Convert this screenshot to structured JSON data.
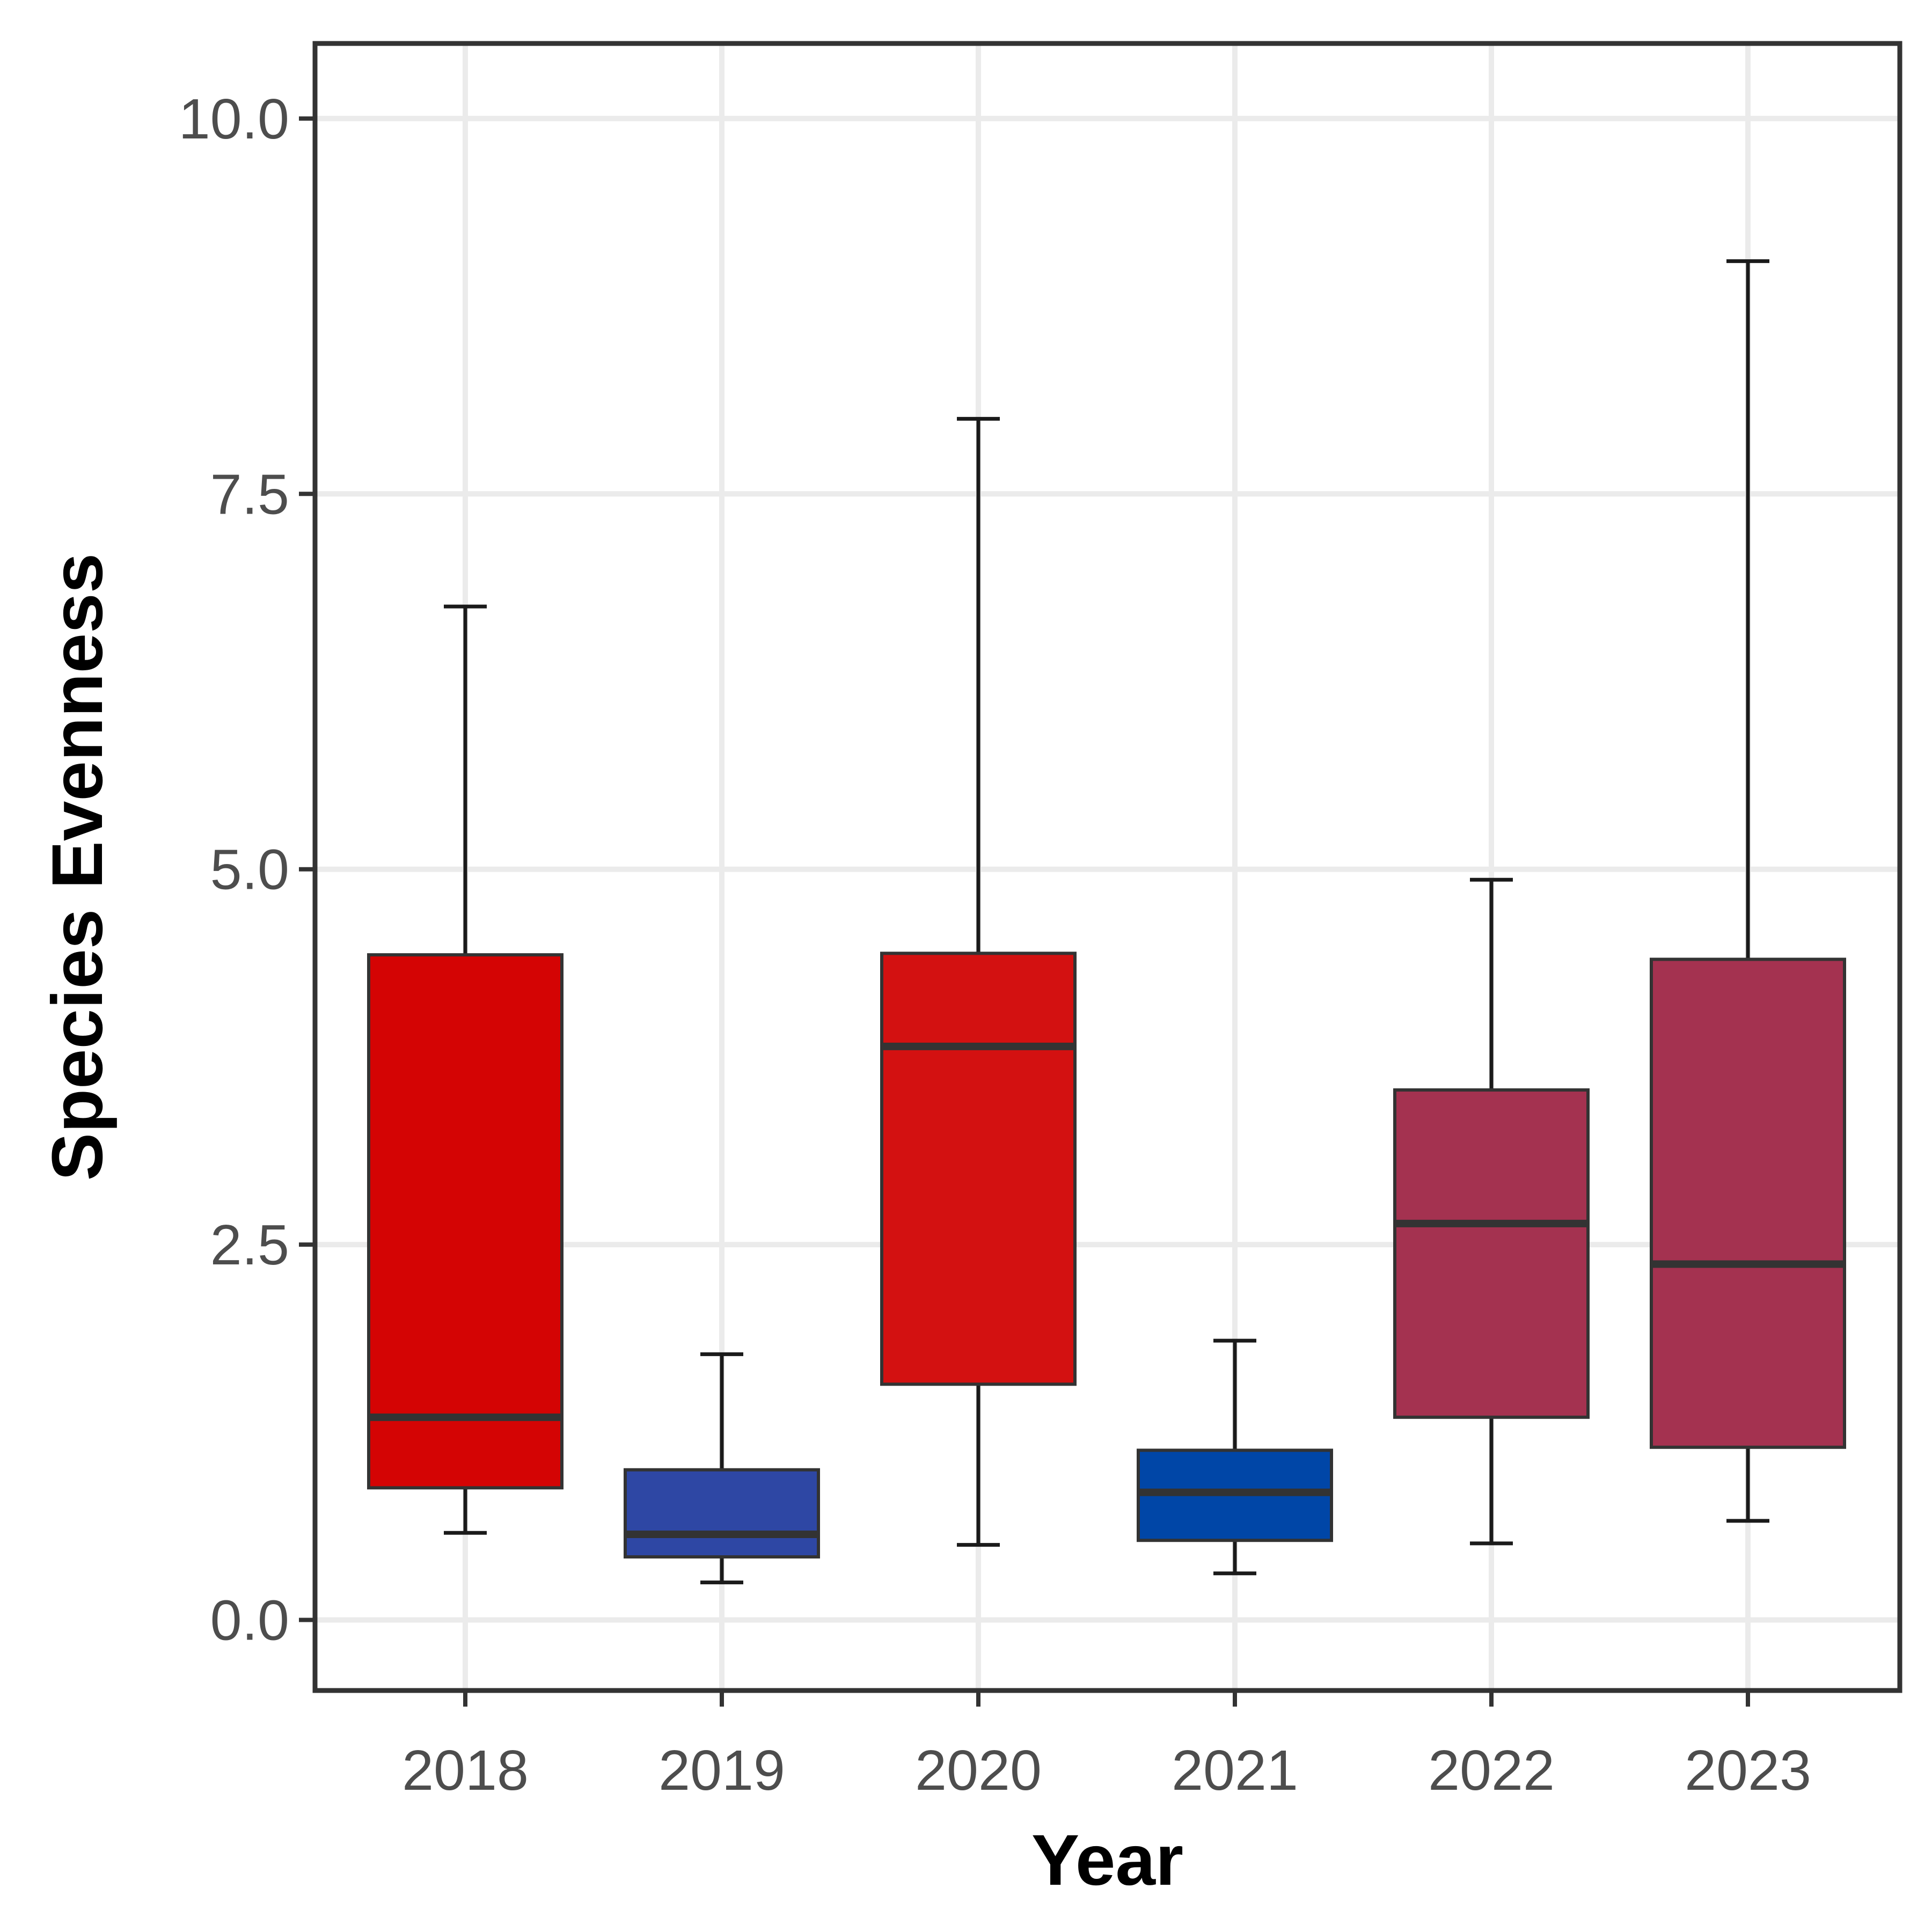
{
  "chart_data": {
    "type": "boxplot",
    "title": "",
    "xlabel": "Year",
    "ylabel": "Species Evenness",
    "ylim": [
      -0.47,
      10.5
    ],
    "yticks": [
      0.0,
      2.5,
      5.0,
      7.5,
      10.0
    ],
    "ytick_labels": [
      "0.0",
      "2.5",
      "5.0",
      "7.5",
      "10.0"
    ],
    "grid": true,
    "legend": "none",
    "categories": [
      "2018",
      "2019",
      "2020",
      "2021",
      "2022",
      "2023"
    ],
    "boxes": [
      {
        "category": "2018",
        "whisker_low": 0.58,
        "q1": 0.88,
        "median": 1.35,
        "q3": 4.43,
        "whisker_high": 6.75,
        "color": "#D40404"
      },
      {
        "category": "2019",
        "whisker_low": 0.25,
        "q1": 0.42,
        "median": 0.57,
        "q3": 1.0,
        "whisker_high": 1.77,
        "color": "#2E47A4"
      },
      {
        "category": "2020",
        "whisker_low": 0.5,
        "q1": 1.57,
        "median": 3.82,
        "q3": 4.44,
        "whisker_high": 8.0,
        "color": "#D31111"
      },
      {
        "category": "2021",
        "whisker_low": 0.31,
        "q1": 0.53,
        "median": 0.85,
        "q3": 1.13,
        "whisker_high": 1.86,
        "color": "#0046A7"
      },
      {
        "category": "2022",
        "whisker_low": 0.51,
        "q1": 1.35,
        "median": 2.64,
        "q3": 3.53,
        "whisker_high": 4.93,
        "color": "#A43250"
      },
      {
        "category": "2023",
        "whisker_low": 0.66,
        "q1": 1.15,
        "median": 2.37,
        "q3": 4.4,
        "whisker_high": 9.05,
        "color": "#A43250"
      }
    ]
  }
}
